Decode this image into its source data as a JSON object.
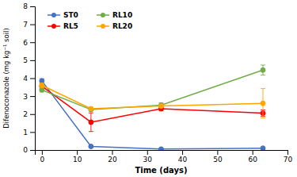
{
  "chart_data": {
    "type": "line",
    "xlabel": "Time (days)",
    "ylabel": "Difenoconazole (mg kg⁻¹ soil)",
    "x": [
      0,
      14,
      34,
      63
    ],
    "series": [
      {
        "name": "ST0",
        "color": "#4472C4",
        "marker": "circle",
        "values": [
          3.85,
          0.2,
          0.05,
          0.1
        ],
        "yerr": [
          0.12,
          0.05,
          0.02,
          0.02
        ]
      },
      {
        "name": "RL5",
        "color": "#FF0000",
        "marker": "circle",
        "values": [
          3.55,
          1.55,
          2.3,
          2.05
        ],
        "yerr": [
          0.12,
          0.52,
          0.12,
          0.18
        ]
      },
      {
        "name": "RL10",
        "color": "#70AD47",
        "marker": "circle",
        "values": [
          3.35,
          2.25,
          2.5,
          4.45
        ],
        "yerr": [
          0.12,
          0.05,
          0.12,
          0.28
        ]
      },
      {
        "name": "RL20",
        "color": "#FFA500",
        "marker": "circle",
        "values": [
          3.6,
          2.3,
          2.45,
          2.6
        ],
        "yerr": [
          0.12,
          0.05,
          0.09,
          0.82
        ]
      }
    ],
    "xlim": [
      -2,
      70
    ],
    "ylim": [
      0.0,
      8.0
    ],
    "xticks": [
      0,
      10,
      20,
      30,
      40,
      50,
      60,
      70
    ],
    "yticks": [
      0,
      1,
      2,
      3,
      4,
      5,
      6,
      7,
      8
    ],
    "legend": "upper-left",
    "grid": false
  }
}
